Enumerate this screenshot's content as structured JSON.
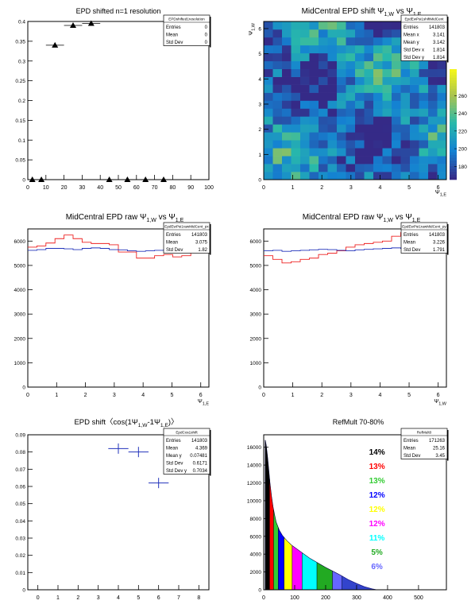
{
  "chart_data": [
    {
      "type": "scatter",
      "title": "EPD shifted n=1 resolution",
      "xlim": [
        0,
        100
      ],
      "ylim": [
        0,
        0.4
      ],
      "xticks": [
        "0",
        "10",
        "20",
        "30",
        "40",
        "50",
        "60",
        "70",
        "80",
        "90",
        "100"
      ],
      "yticks": [
        "0",
        "0.05",
        "0.1",
        "0.15",
        "0.2",
        "0.25",
        "0.3",
        "0.35",
        "0.4"
      ],
      "stats": {
        "name": "EPDshifted1resolution",
        "rows": [
          [
            "Entries",
            "0"
          ],
          [
            "Mean",
            "0"
          ],
          [
            "Std Dev",
            "0"
          ]
        ]
      },
      "points": [
        {
          "x": 2.5,
          "y": 0.0,
          "xerr": 2.5
        },
        {
          "x": 7.5,
          "y": 0.0,
          "xerr": 2.5
        },
        {
          "x": 15,
          "y": 0.34,
          "xerr": 5
        },
        {
          "x": 25,
          "y": 0.39,
          "xerr": 5
        },
        {
          "x": 35,
          "y": 0.395,
          "xerr": 5
        },
        {
          "x": 45,
          "y": 0.0,
          "xerr": 5
        },
        {
          "x": 55,
          "y": 0.0,
          "xerr": 5
        },
        {
          "x": 65,
          "y": 0.0,
          "xerr": 5
        },
        {
          "x": 75,
          "y": 0.0,
          "xerr": 5
        }
      ]
    },
    {
      "type": "heatmap",
      "title_main": "MidCentral EPD shift Ψ",
      "title_sub1": "1,W",
      "title_mid": " vs Ψ",
      "title_sub2": "1,E",
      "xlabel": "Ψ",
      "xlabel_sub": "1,E",
      "ylabel": "Ψ",
      "ylabel_sub": "1,W",
      "xlim": [
        0,
        6.283
      ],
      "ylim": [
        0,
        6.283
      ],
      "xticks": [
        "0",
        "1",
        "2",
        "3",
        "4",
        "5",
        "6"
      ],
      "yticks": [
        "0",
        "1",
        "2",
        "3",
        "4",
        "5",
        "6"
      ],
      "zlim": [
        165,
        290
      ],
      "zticks": [
        "180",
        "200",
        "220",
        "240",
        "260"
      ],
      "bins": 20,
      "stats": {
        "name": "EpdEwPsi1shiftMidCent",
        "rows": [
          [
            "Entries",
            "141803"
          ],
          [
            "Mean x",
            "3.141"
          ],
          [
            "Mean y",
            "3.142"
          ],
          [
            "Std Dev x",
            "1.814"
          ],
          [
            "Std Dev y",
            "1.814"
          ]
        ]
      }
    },
    {
      "type": "line",
      "title_main": "MidCentral EPD raw Ψ",
      "title_sub1": "1,W",
      "title_mid": " vs Ψ",
      "title_sub2": "1,E",
      "xlabel": "Ψ",
      "xlabel_sub": "1,E",
      "xlim": [
        0,
        6.283
      ],
      "ylim": [
        0,
        6500
      ],
      "xticks": [
        "0",
        "1",
        "2",
        "3",
        "4",
        "5",
        "6"
      ],
      "yticks": [
        "0",
        "1000",
        "2000",
        "3000",
        "4000",
        "5000",
        "6000"
      ],
      "stats": {
        "name": "EpdEwPsi1rawMidCent_px",
        "rows": [
          [
            "Entries",
            "141803"
          ],
          [
            "Mean",
            "3.075"
          ],
          [
            "Std Dev",
            "1.82"
          ]
        ]
      },
      "series": [
        {
          "color": "#ee2222",
          "values": [
            5750,
            5800,
            5920,
            6100,
            6250,
            6100,
            5950,
            5900,
            5900,
            5850,
            5550,
            5550,
            5300,
            5300,
            5400,
            5450,
            5350,
            5400,
            5600,
            5800
          ]
        },
        {
          "color": "#2233bb",
          "values": [
            5620,
            5650,
            5700,
            5700,
            5680,
            5650,
            5700,
            5720,
            5700,
            5650,
            5640,
            5600,
            5580,
            5600,
            5620,
            5650,
            5660,
            5620,
            5600,
            5620
          ]
        }
      ]
    },
    {
      "type": "line",
      "title_main": "MidCentral EPD raw Ψ",
      "title_sub1": "1,W",
      "title_mid": " vs Ψ",
      "title_sub2": "1,E",
      "xlabel": "Ψ",
      "xlabel_sub": "1,W",
      "xlim": [
        0,
        6.283
      ],
      "ylim": [
        0,
        6500
      ],
      "xticks": [
        "0",
        "1",
        "2",
        "3",
        "4",
        "5",
        "6"
      ],
      "yticks": [
        "0",
        "1000",
        "2000",
        "3000",
        "4000",
        "5000",
        "6000"
      ],
      "stats": {
        "name": "EpdEwPsi1rawMidCent_py",
        "rows": [
          [
            "Entries",
            "141803"
          ],
          [
            "Mean",
            "3.226"
          ],
          [
            "Std Dev",
            "1.791"
          ]
        ]
      },
      "series": [
        {
          "color": "#ee2222",
          "values": [
            5400,
            5250,
            5100,
            5150,
            5250,
            5300,
            5450,
            5500,
            5600,
            5750,
            5850,
            5900,
            5950,
            6000,
            6200,
            6350,
            6150,
            6000,
            5850,
            5600
          ]
        },
        {
          "color": "#2233bb",
          "values": [
            5600,
            5620,
            5580,
            5600,
            5620,
            5640,
            5660,
            5650,
            5620,
            5600,
            5640,
            5660,
            5680,
            5700,
            5720,
            5700,
            5680,
            5650,
            5640,
            5620
          ]
        }
      ]
    },
    {
      "type": "scatter",
      "title": "EPD shift〈cos(1Ψ",
      "title_sub1": "1,W",
      "title_mid": "-1Ψ",
      "title_sub2": "1,E",
      "title_end": ")〉",
      "xlim": [
        -0.5,
        8.5
      ],
      "ylim": [
        0.0,
        0.09
      ],
      "xticks": [
        "0",
        "1",
        "2",
        "3",
        "4",
        "5",
        "6",
        "7",
        "8"
      ],
      "yticks": [
        "0",
        "0.01",
        "0.02",
        "0.03",
        "0.04",
        "0.05",
        "0.06",
        "0.07",
        "0.08",
        "0.09"
      ],
      "stats": {
        "name": "EpdCos1shift",
        "rows": [
          [
            "Entries",
            "141803"
          ],
          [
            "Mean",
            "4.369"
          ],
          [
            "Mean y",
            "0.07481"
          ],
          [
            "Std Dev",
            "0.6171"
          ],
          [
            "Std Dev y",
            "0.7034"
          ]
        ]
      },
      "points": [
        {
          "x": 4,
          "y": 0.082,
          "xerr": 0.5,
          "yerr": 0.003
        },
        {
          "x": 5,
          "y": 0.08,
          "xerr": 0.5,
          "yerr": 0.003
        },
        {
          "x": 6,
          "y": 0.062,
          "xerr": 0.5,
          "yerr": 0.003
        }
      ]
    },
    {
      "type": "area",
      "title": "RefMult 70-80%",
      "xlim": [
        0,
        590
      ],
      "ylim": [
        0,
        17400
      ],
      "xticks": [
        "0",
        "100",
        "200",
        "300",
        "400",
        "500"
      ],
      "yticks": [
        "0",
        "2000",
        "4000",
        "6000",
        "8000",
        "10000",
        "12000",
        "14000",
        "16000"
      ],
      "stats": {
        "name": "RefMult0",
        "rows": [
          [
            "Entries",
            "171263"
          ],
          [
            "Mean",
            "25.16"
          ],
          [
            "Std Dev",
            "3.45"
          ]
        ]
      },
      "curve": [
        [
          5,
          16800
        ],
        [
          8,
          16200
        ],
        [
          12,
          15000
        ],
        [
          16,
          13500
        ],
        [
          20,
          12000
        ],
        [
          25,
          10500
        ],
        [
          30,
          9300
        ],
        [
          35,
          8400
        ],
        [
          40,
          7600
        ],
        [
          50,
          6700
        ],
        [
          60,
          6100
        ],
        [
          75,
          5500
        ],
        [
          90,
          5000
        ],
        [
          110,
          4500
        ],
        [
          130,
          4000
        ],
        [
          150,
          3500
        ],
        [
          175,
          3000
        ],
        [
          200,
          2500
        ],
        [
          225,
          2050
        ],
        [
          250,
          1600
        ],
        [
          275,
          1100
        ],
        [
          300,
          700
        ],
        [
          325,
          350
        ],
        [
          350,
          100
        ],
        [
          365,
          0
        ]
      ],
      "bands": [
        {
          "from": 5,
          "to": 19,
          "color": "#000000"
        },
        {
          "from": 19,
          "to": 32,
          "color": "#ff0000"
        },
        {
          "from": 32,
          "to": 47,
          "color": "#33cc33"
        },
        {
          "from": 47,
          "to": 66,
          "color": "#0000ff"
        },
        {
          "from": 66,
          "to": 92,
          "color": "#ffff00"
        },
        {
          "from": 92,
          "to": 124,
          "color": "#ff00ff"
        },
        {
          "from": 124,
          "to": 172,
          "color": "#00ffff"
        },
        {
          "from": 172,
          "to": 222,
          "color": "#22aa22"
        },
        {
          "from": 222,
          "to": 252,
          "color": "#6666ff"
        }
      ],
      "legend": [
        {
          "text": "14%",
          "color": "#000000"
        },
        {
          "text": "13%",
          "color": "#ff0000"
        },
        {
          "text": "13%",
          "color": "#33cc33"
        },
        {
          "text": "12%",
          "color": "#0000ff"
        },
        {
          "text": "12%",
          "color": "#ffff00"
        },
        {
          "text": "12%",
          "color": "#ff00ff"
        },
        {
          "text": "11%",
          "color": "#00ffff"
        },
        {
          "text": "5%",
          "color": "#22aa22"
        },
        {
          "text": "6%",
          "color": "#6666ff"
        }
      ]
    }
  ]
}
